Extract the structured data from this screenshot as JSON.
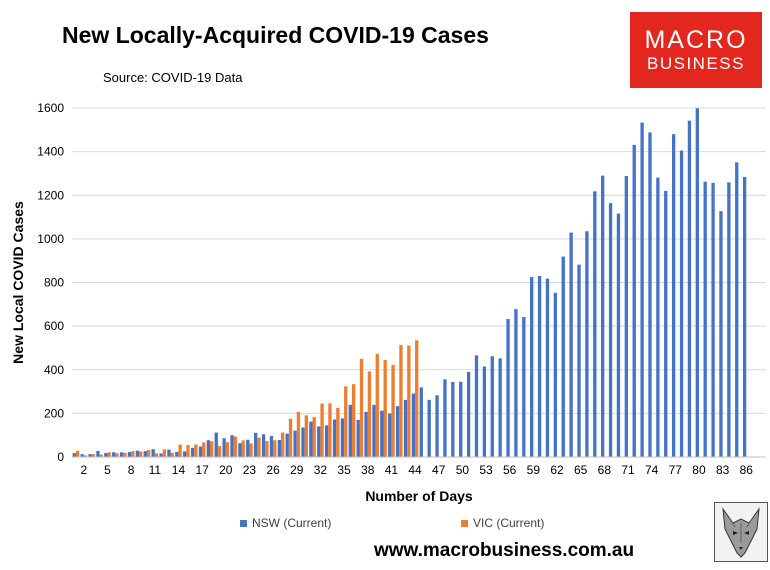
{
  "header": {
    "title": "New Locally-Acquired COVID-19 Cases",
    "source": "Source: COVID-19 Data"
  },
  "logo": {
    "line1": "MACRO",
    "line2": "BUSINESS"
  },
  "footer": {
    "url": "www.macrobusiness.com.au"
  },
  "colors": {
    "nsw": "#4472c4",
    "vic": "#ed7d31",
    "grid": "#d9d9d9",
    "logo_bg": "#e3271f"
  },
  "chart_data": {
    "type": "bar",
    "title": "New Locally-Acquired COVID-19 Cases",
    "xlabel": "Number of Days",
    "ylabel": "New Local COVID Cases",
    "ylim": [
      0,
      1600
    ],
    "y_ticks": [
      0,
      200,
      400,
      600,
      800,
      1000,
      1200,
      1400,
      1600
    ],
    "x_start": 1,
    "x_end": 88,
    "x_ticks": [
      2,
      5,
      8,
      11,
      14,
      17,
      20,
      23,
      26,
      29,
      32,
      35,
      38,
      41,
      44,
      47,
      50,
      53,
      56,
      59,
      62,
      65,
      68,
      71,
      74,
      77,
      80,
      83,
      86
    ],
    "grid": true,
    "legend_position": "bottom",
    "series": [
      {
        "name": "NSW (Current)",
        "color": "#4472c4",
        "values": [
          18,
          13,
          13,
          28,
          18,
          22,
          21,
          23,
          29,
          27,
          36,
          16,
          34,
          23,
          26,
          42,
          48,
          77,
          112,
          86,
          100,
          63,
          79,
          111,
          104,
          97,
          78,
          107,
          121,
          135,
          162,
          140,
          145,
          172,
          177,
          239,
          170,
          207,
          239,
          212,
          199,
          233,
          262,
          291,
          319,
          262,
          283,
          356,
          344,
          345,
          390,
          466,
          415,
          462,
          452,
          633,
          678,
          642,
          825,
          830,
          818,
          753,
          919,
          1029,
          882,
          1035,
          1218,
          1290,
          1164,
          1116,
          1288,
          1431,
          1533,
          1488,
          1281,
          1220,
          1480,
          1405,
          1542,
          1599,
          1262,
          1257,
          1127,
          1259,
          1351,
          1284
        ]
      },
      {
        "name": "VIC (Current)",
        "color": "#ed7d31",
        "values": [
          29,
          7,
          13,
          11,
          21,
          17,
          19,
          27,
          25,
          32,
          17,
          35,
          19,
          57,
          55,
          57,
          67,
          72,
          50,
          68,
          94,
          76,
          62,
          88,
          73,
          77,
          112,
          175,
          207,
          191,
          183,
          245,
          246,
          225,
          324,
          334,
          450,
          392,
          473,
          445,
          422,
          514,
          511,
          535
        ]
      }
    ]
  }
}
